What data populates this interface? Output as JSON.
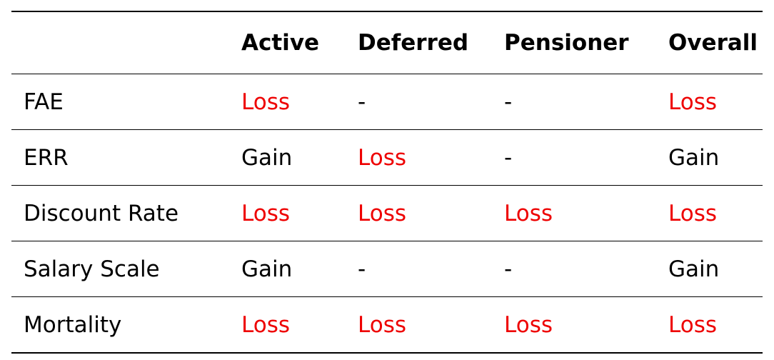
{
  "table": {
    "headers": [
      "",
      "Active",
      "Deferred",
      "Pensioner",
      "Overall"
    ],
    "rows": [
      {
        "label": "FAE",
        "cells": [
          "Loss",
          "-",
          "-",
          "Loss"
        ]
      },
      {
        "label": "ERR",
        "cells": [
          "Gain",
          "Loss",
          "-",
          "Gain"
        ]
      },
      {
        "label": "Discount Rate",
        "cells": [
          "Loss",
          "Loss",
          "Loss",
          "Loss"
        ]
      },
      {
        "label": "Salary Scale",
        "cells": [
          "Gain",
          "-",
          "-",
          "Gain"
        ]
      },
      {
        "label": "Mortality",
        "cells": [
          "Loss",
          "Loss",
          "Loss",
          "Loss"
        ]
      }
    ]
  },
  "colors": {
    "loss": "#ee0000",
    "gain": "#000000",
    "rule": "#000000"
  }
}
